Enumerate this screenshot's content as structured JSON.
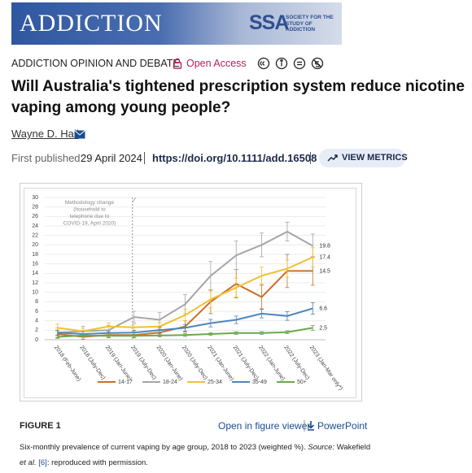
{
  "header": {
    "journal": "ADDICTION",
    "society": "SSA",
    "society_name": [
      "SOCIETY FOR THE",
      "STUDY OF",
      "ADDICTION"
    ]
  },
  "article": {
    "section": "ADDICTION OPINION AND DEBATE",
    "access": "Open Access",
    "title": "Will Australia's tightened prescription system reduce nicotine vaping among young people?",
    "author": "Wayne D. Hall",
    "published_label": "First published:",
    "published_date": "29 April 2024",
    "doi": "https://doi.org/10.1111/add.16508",
    "metrics_button": "VIEW METRICS"
  },
  "figure": {
    "label": "FIGURE 1",
    "viewer_link": "Open in figure viewer",
    "powerpoint_link": "PowerPoint",
    "caption": {
      "text": "Six-monthly prevalence of current vaping by age group, 2018 to 2023 (weighted %).",
      "source_label": "Source:",
      "source": "Wakefield",
      "et_al": "et al.",
      "ref": "[6]",
      "rest": ": reproduced with permission."
    }
  },
  "chart_data": {
    "type": "line",
    "annotation": [
      "Methodology change",
      "(household to",
      "telephone due to",
      "COVID-19, April 2020)"
    ],
    "categories": [
      "2018 (Feb-June)",
      "2018 (July-Dec)",
      "2019 (Jan-June)",
      "2019 (July-Dec)",
      "2020 (Jan-June)",
      "2020 (July-Dec)",
      "2021 (Jan-June)",
      "2021 (July-Dec)",
      "2022 (Jan-June)",
      "2022 (July-Dec)",
      "2023 (Jan-Mar only*)"
    ],
    "series": [
      {
        "name": "14-17",
        "color": "#c8702c",
        "values": [
          1.2,
          0.6,
          1.0,
          1.0,
          1.5,
          2.8,
          8,
          11.8,
          9,
          14.5,
          14.5
        ],
        "errors": [
          0.8,
          0.5,
          0.6,
          0.6,
          0.7,
          1.2,
          2.5,
          3,
          2.5,
          3.5,
          3
        ]
      },
      {
        "name": "18-24",
        "color": "#a5a5a5",
        "values": [
          1.5,
          1.8,
          2.0,
          4.8,
          4.2,
          7.5,
          13.5,
          17.8,
          20,
          22.8,
          19.8
        ],
        "errors": [
          1,
          1,
          1,
          1.2,
          1.5,
          2,
          3,
          3,
          2.5,
          2,
          2.5
        ]
      },
      {
        "name": "25-34",
        "color": "#f2c12e",
        "values": [
          2.5,
          1.8,
          2.8,
          2.6,
          2.8,
          5.2,
          8.5,
          11,
          13.5,
          15,
          17.4
        ],
        "errors": [
          0.8,
          0.6,
          0.7,
          0.7,
          0.8,
          1.2,
          1.8,
          2,
          1.8,
          1.8,
          2
        ]
      },
      {
        "name": "35-49",
        "color": "#4f86b8",
        "values": [
          1.5,
          1.2,
          1.4,
          1.5,
          2.0,
          2.5,
          3.5,
          4.2,
          5.5,
          5.0,
          6.6
        ],
        "errors": [
          0.5,
          0.5,
          0.5,
          0.5,
          0.6,
          0.7,
          0.8,
          0.8,
          0.9,
          0.9,
          1.2
        ]
      },
      {
        "name": "50+",
        "color": "#6aa84f",
        "values": [
          0.6,
          0.9,
          0.8,
          0.8,
          0.9,
          1.0,
          1.2,
          1.4,
          1.4,
          1.6,
          2.5
        ],
        "errors": [
          0.3,
          0.3,
          0.3,
          0.3,
          0.3,
          0.3,
          0.3,
          0.3,
          0.3,
          0.3,
          0.5
        ]
      }
    ],
    "ylim": [
      0,
      30
    ],
    "yticks": [
      0,
      2,
      4,
      6,
      8,
      10,
      12,
      14,
      16,
      18,
      20,
      22,
      24,
      26,
      28,
      30
    ],
    "grid": true
  }
}
